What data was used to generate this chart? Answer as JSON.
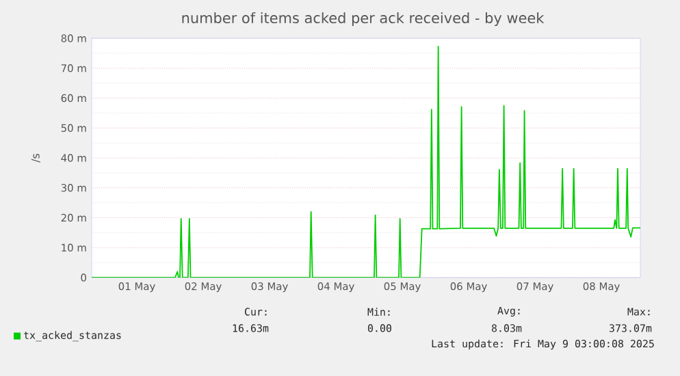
{
  "chart_data": {
    "type": "line",
    "title": "number of items acked per ack received - by week",
    "ylabel": "/s",
    "x": [
      "2025-04-30T19:40",
      "2025-05-02T01:50",
      "2025-05-02T02:40",
      "2025-05-02T03:05",
      "2025-05-02T03:35",
      "2025-05-02T04:00",
      "2025-05-02T04:30",
      "2025-05-02T06:30",
      "2025-05-02T07:00",
      "2025-05-02T07:25",
      "2025-05-04T02:35",
      "2025-05-04T03:00",
      "2025-05-04T03:30",
      "2025-05-05T01:50",
      "2025-05-05T02:15",
      "2025-05-05T02:40",
      "2025-05-05T10:45",
      "2025-05-05T11:10",
      "2025-05-05T11:35",
      "2025-05-05T18:20",
      "2025-05-05T19:05",
      "2025-05-05T22:10",
      "2025-05-05T22:35",
      "2025-05-05T23:00",
      "2025-05-06T00:40",
      "2025-05-06T01:00",
      "2025-05-06T01:25",
      "2025-05-06T09:00",
      "2025-05-06T09:25",
      "2025-05-06T09:50",
      "2025-05-06T21:10",
      "2025-05-06T22:00",
      "2025-05-06T22:40",
      "2025-05-06T23:05",
      "2025-05-06T23:35",
      "2025-05-07T00:20",
      "2025-05-07T00:45",
      "2025-05-07T01:10",
      "2025-05-07T06:10",
      "2025-05-07T06:35",
      "2025-05-07T07:00",
      "2025-05-07T07:50",
      "2025-05-07T08:10",
      "2025-05-07T08:35",
      "2025-05-07T21:30",
      "2025-05-07T21:55",
      "2025-05-07T22:20",
      "2025-05-08T01:35",
      "2025-05-08T02:00",
      "2025-05-08T02:25",
      "2025-05-08T16:30",
      "2025-05-08T16:55",
      "2025-05-08T17:30",
      "2025-05-08T17:55",
      "2025-05-08T18:20",
      "2025-05-08T20:55",
      "2025-05-08T21:20",
      "2025-05-08T21:40",
      "2025-05-08T22:40",
      "2025-05-08T23:20",
      "2025-05-09T02:05"
    ],
    "series": [
      {
        "name": "tx_acked_stanzas",
        "color": "#00cc00",
        "values": [
          0,
          0,
          2,
          0,
          0,
          19.7,
          0,
          0,
          19.7,
          0,
          0,
          22,
          0,
          0,
          20.9,
          0,
          0,
          19.7,
          0,
          0,
          16.3,
          16.3,
          56.2,
          16.3,
          16.3,
          77.3,
          16.3,
          16.5,
          57.1,
          16.5,
          16.5,
          13.9,
          16.5,
          36.1,
          16.5,
          16.5,
          57.5,
          16.5,
          16.5,
          38.3,
          16.5,
          16.5,
          55.8,
          16.5,
          16.5,
          36.4,
          16.5,
          16.5,
          36.4,
          16.5,
          16.5,
          19.3,
          16.5,
          36.4,
          16.5,
          16.5,
          36.4,
          16.5,
          13.6,
          16.6,
          16.6
        ]
      }
    ],
    "xlim": [
      "2025-04-30T19:40",
      "2025-05-09T02:05"
    ],
    "xticks": [
      {
        "value": "2025-05-01T12:00",
        "label": "01 May"
      },
      {
        "value": "2025-05-02T12:00",
        "label": "02 May"
      },
      {
        "value": "2025-05-03T12:00",
        "label": "03 May"
      },
      {
        "value": "2025-05-04T12:00",
        "label": "04 May"
      },
      {
        "value": "2025-05-05T12:00",
        "label": "05 May"
      },
      {
        "value": "2025-05-06T12:00",
        "label": "06 May"
      },
      {
        "value": "2025-05-07T12:00",
        "label": "07 May"
      },
      {
        "value": "2025-05-08T12:00",
        "label": "08 May"
      }
    ],
    "ylim": [
      0,
      80
    ],
    "yticks": [
      {
        "value": 0,
        "label": "0"
      },
      {
        "value": 10,
        "label": "10 m"
      },
      {
        "value": 20,
        "label": "20 m"
      },
      {
        "value": 30,
        "label": "30 m"
      },
      {
        "value": 40,
        "label": "40 m"
      },
      {
        "value": 50,
        "label": "50 m"
      },
      {
        "value": 60,
        "label": "60 m"
      },
      {
        "value": 70,
        "label": "70 m"
      },
      {
        "value": 80,
        "label": "80 m"
      }
    ],
    "grid": true,
    "legend": "bottom left",
    "marker": "none",
    "line_style": "solid",
    "annotations": [
      "Cur:",
      "Min:",
      "Avg:",
      "Max:",
      "16.63m",
      "0.00",
      "8.03m",
      "373.07m",
      "Last update: Fri May  9 03:00:08 2025"
    ]
  }
}
